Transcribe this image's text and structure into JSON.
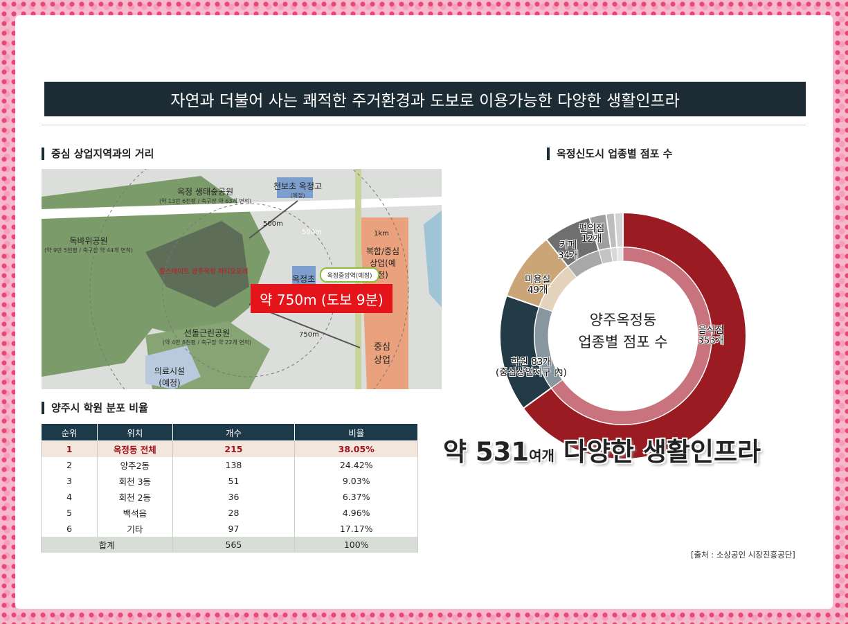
{
  "banner": "자연과 더불어 사는 쾌적한 주거환경과 도보로 이용가능한 다양한 생활인프라",
  "map_section": {
    "heading": "중심 상업지역과의 거리",
    "labels": {
      "eco_park": "옥정 생태숲공원",
      "eco_park_sub": "(약 13만 6천평 / 축구장 약 63개 면적)",
      "school1": "천보초 옥정고",
      "school1_sub": "(예정)",
      "dokbawi": "독바위공원",
      "dokbawi_sub": "(약 9만 5천평 / 축구장 약 44개 면적)",
      "complex": "힐스테이트 양주옥정 파티오포레",
      "okjeong_school": "옥정초",
      "station": "옥정중앙역(예정)",
      "commercial_multi": "복합/중심 상업(예정)",
      "seondol": "선돌근린공원",
      "seondol_sub": "(약 4만 8천평 / 축구장 약 22개 면적)",
      "medical": "의료시설 (예정)",
      "center_commercial": "중심 상업",
      "r500a": "500m",
      "r500b": "500m",
      "r1km": "1km",
      "r750": "750m"
    },
    "distance_box": "약 750m (도보 9분)"
  },
  "academy_section": {
    "heading": "양주시 학원 분포 비율",
    "columns": [
      "순위",
      "위치",
      "개수",
      "비율"
    ],
    "rows": [
      [
        "1",
        "옥정동 전체",
        "215",
        "38.05%"
      ],
      [
        "2",
        "양주2동",
        "138",
        "24.42%"
      ],
      [
        "3",
        "회천 3동",
        "51",
        "9.03%"
      ],
      [
        "4",
        "회천 2동",
        "36",
        "6.37%"
      ],
      [
        "5",
        "백석읍",
        "28",
        "4.96%"
      ],
      [
        "6",
        "기타",
        "97",
        "17.17%"
      ]
    ],
    "total": [
      "합계",
      "565",
      "100%"
    ]
  },
  "donut_section": {
    "heading": "옥정신도시 업종별 점포 수",
    "center_line1": "양주옥정동",
    "center_line2": "업종별 점포 수",
    "big_prefix": "약 531",
    "big_small": "여개",
    "big_suffix": " 다양한 생활인프라",
    "source": "[출처 : 소상공인 시장진흥공단]"
  },
  "chart_data": {
    "type": "pie",
    "title": "옥정신도시 업종별 점포 수",
    "categories": [
      "음식점",
      "학원",
      "미용실",
      "카페",
      "편의점",
      "",
      ""
    ],
    "values": [
      353,
      83,
      49,
      34,
      12,
      6,
      6
    ],
    "labels": [
      [
        "음식점",
        "353개"
      ],
      [
        "학원 83개",
        "(중심상업지구 內)"
      ],
      [
        "미용실",
        "49개"
      ],
      [
        "카페",
        "34개"
      ],
      [
        "편의점",
        "12개"
      ]
    ],
    "colors": [
      "#9b1b23",
      "#233b47",
      "#c9a578",
      "#6f6f6f",
      "#9e9e9e",
      "#bdbdbd",
      "#d4d4d4"
    ],
    "inner_colors": [
      "#c8737e",
      "#8896a0",
      "#e3d3bd",
      "#a8a8a8",
      "#c4c4c4",
      "#d8d8d8",
      "#e6e6e6"
    ]
  }
}
